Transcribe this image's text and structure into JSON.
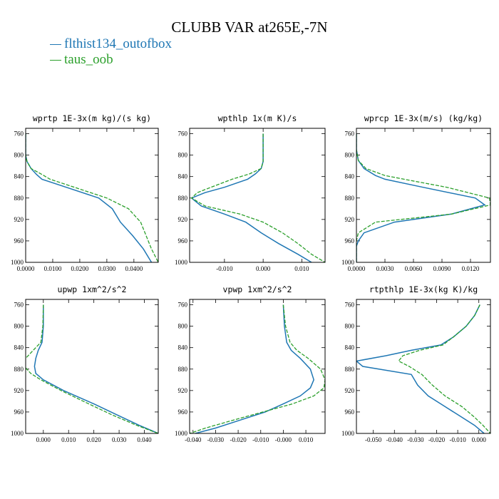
{
  "figure_title": "CLUBB VAR at265E,-7N",
  "legend": [
    {
      "label": "flthist134_outofbox",
      "color": "#1f77b4"
    },
    {
      "label": "taus_oob",
      "color": "#2ca02c"
    }
  ],
  "chart_data": [
    {
      "type": "line",
      "title": "wprtp  1E-3x(m kg)/(s kg)",
      "xlim": [
        0.0,
        0.049
      ],
      "ylim": [
        1000,
        750
      ],
      "xticks": [
        0.0,
        0.01,
        0.02,
        0.03,
        0.04
      ],
      "xtick_labels": [
        "0.0000",
        "0.0100",
        "0.0200",
        "0.0300",
        "0.0400"
      ],
      "yticks": [
        760,
        800,
        840,
        880,
        920,
        960,
        1000
      ],
      "ytick_labels": [
        "760",
        "800",
        "840",
        "880",
        "920",
        "960",
        "1000"
      ],
      "y": [
        760,
        780,
        800,
        812,
        825,
        836,
        845,
        860,
        880,
        900,
        925,
        950,
        975,
        1000
      ],
      "series": [
        {
          "name": "flthist134_outofbox",
          "x": [
            0.0,
            0.0,
            0.0,
            0.0005,
            0.002,
            0.004,
            0.006,
            0.015,
            0.027,
            0.032,
            0.035,
            0.0395,
            0.0435,
            0.0465
          ]
        },
        {
          "name": "taus_oob",
          "x": [
            0.0,
            0.0,
            0.0,
            0.0005,
            0.002,
            0.006,
            0.009,
            0.018,
            0.03,
            0.038,
            0.0425,
            0.0445,
            0.0465,
            0.049
          ]
        }
      ]
    },
    {
      "type": "line",
      "title": "wpthlp  1x(m K)/s",
      "xlim": [
        -0.019,
        0.016
      ],
      "ylim": [
        1000,
        750
      ],
      "xticks": [
        -0.01,
        0.0,
        0.01
      ],
      "xtick_labels": [
        "-0.010",
        "0.000",
        "0.010"
      ],
      "yticks": [
        760,
        800,
        840,
        880,
        920,
        960,
        1000
      ],
      "ytick_labels": [
        "760",
        "800",
        "840",
        "880",
        "920",
        "960",
        "1000"
      ],
      "y": [
        760,
        780,
        800,
        812,
        825,
        835,
        845,
        860,
        870,
        880,
        895,
        910,
        925,
        945,
        965,
        985,
        1000
      ],
      "series": [
        {
          "name": "flthist134_outofbox",
          "x": [
            0.0,
            0.0,
            0.0,
            0.0,
            -0.0005,
            -0.002,
            -0.004,
            -0.01,
            -0.015,
            -0.0185,
            -0.016,
            -0.01,
            -0.0045,
            -0.0005,
            0.004,
            0.009,
            0.0125
          ]
        },
        {
          "name": "taus_oob",
          "x": [
            0.0,
            0.0,
            0.0,
            0.0,
            -0.0005,
            -0.0035,
            -0.008,
            -0.0135,
            -0.017,
            -0.0185,
            -0.015,
            -0.006,
            0.0,
            0.005,
            0.009,
            0.0125,
            0.016
          ]
        }
      ]
    },
    {
      "type": "line",
      "title": "wprcp  1E-3x(m/s) (kg/kg)",
      "xlim": [
        0.0,
        0.0141
      ],
      "ylim": [
        1000,
        750
      ],
      "xticks": [
        0.0,
        0.003,
        0.006,
        0.009,
        0.012
      ],
      "xtick_labels": [
        "0.0000",
        "0.0030",
        "0.0060",
        "0.0090",
        "0.0120"
      ],
      "yticks": [
        760,
        800,
        840,
        880,
        920,
        960,
        1000
      ],
      "ytick_labels": [
        "760",
        "800",
        "840",
        "880",
        "920",
        "960",
        "1000"
      ],
      "y": [
        760,
        790,
        810,
        825,
        838,
        845,
        860,
        880,
        893,
        910,
        925,
        945,
        960,
        970,
        1000
      ],
      "series": [
        {
          "name": "flthist134_outofbox",
          "x": [
            0.0,
            0.0,
            0.0002,
            0.0008,
            0.002,
            0.003,
            0.007,
            0.0125,
            0.0135,
            0.01,
            0.004,
            0.0008,
            0.0002,
            0.0,
            0.0
          ]
        },
        {
          "name": "taus_oob",
          "x": [
            0.0,
            0.0,
            0.0002,
            0.001,
            0.003,
            0.005,
            0.0095,
            0.014,
            0.0141,
            0.01,
            0.002,
            0.0002,
            0.0,
            0.0,
            0.0
          ]
        }
      ]
    },
    {
      "type": "line",
      "title": "upwp  1xm^2/s^2",
      "xlim": [
        -0.007,
        0.0455
      ],
      "ylim": [
        1000,
        750
      ],
      "xticks": [
        0.0,
        0.01,
        0.02,
        0.03,
        0.04
      ],
      "xtick_labels": [
        "0.000",
        "0.010",
        "0.020",
        "0.030",
        "0.040"
      ],
      "yticks": [
        760,
        800,
        840,
        880,
        920,
        960,
        1000
      ],
      "ytick_labels": [
        "760",
        "800",
        "840",
        "880",
        "920",
        "960",
        "1000"
      ],
      "y": [
        760,
        800,
        830,
        845,
        860,
        875,
        888,
        900,
        920,
        945,
        965,
        985,
        1000
      ],
      "series": [
        {
          "name": "flthist134_outofbox",
          "x": [
            0.0,
            0.0,
            -0.0005,
            -0.002,
            -0.003,
            -0.0035,
            -0.003,
            0.0,
            0.008,
            0.02,
            0.029,
            0.038,
            0.0455
          ]
        },
        {
          "name": "taus_oob",
          "x": [
            0.0,
            -0.0002,
            -0.001,
            -0.004,
            -0.007,
            -0.0075,
            -0.005,
            -0.001,
            0.007,
            0.018,
            0.027,
            0.037,
            0.0455
          ]
        }
      ]
    },
    {
      "type": "line",
      "title": "vpwp  1xm^2/s^2",
      "xlim": [
        -0.0415,
        0.0185
      ],
      "ylim": [
        1000,
        750
      ],
      "xticks": [
        -0.04,
        -0.03,
        -0.02,
        -0.01,
        0.0,
        0.01
      ],
      "xtick_labels": [
        "-0.040",
        "-0.030",
        "-0.020",
        "-0.010",
        "-0.000",
        "0.010"
      ],
      "yticks": [
        760,
        800,
        840,
        880,
        920,
        960,
        1000
      ],
      "ytick_labels": [
        "760",
        "800",
        "840",
        "880",
        "920",
        "960",
        "1000"
      ],
      "y": [
        760,
        800,
        830,
        845,
        860,
        880,
        900,
        915,
        930,
        945,
        960,
        975,
        990,
        1000
      ],
      "series": [
        {
          "name": "flthist134_outofbox",
          "x": [
            0.0,
            0.0005,
            0.0015,
            0.0035,
            0.0075,
            0.012,
            0.0135,
            0.012,
            0.0075,
            0.0,
            -0.008,
            -0.019,
            -0.03,
            -0.039
          ]
        },
        {
          "name": "taus_oob",
          "x": [
            0.0,
            0.001,
            0.003,
            0.006,
            0.011,
            0.0165,
            0.0185,
            0.018,
            0.0135,
            0.004,
            -0.009,
            -0.022,
            -0.0345,
            -0.0415
          ]
        }
      ]
    },
    {
      "type": "line",
      "title": "rtpthlp  1E-3x(kg K)/kg",
      "xlim": [
        -0.058,
        0.0055
      ],
      "ylim": [
        1000,
        750
      ],
      "xticks": [
        -0.05,
        -0.04,
        -0.03,
        -0.02,
        -0.01,
        0.0
      ],
      "xtick_labels": [
        "-0.050",
        "-0.040",
        "-0.030",
        "-0.020",
        "-0.010",
        "0.000"
      ],
      "yticks": [
        760,
        800,
        840,
        880,
        920,
        960,
        1000
      ],
      "ytick_labels": [
        "760",
        "800",
        "840",
        "880",
        "920",
        "960",
        "1000"
      ],
      "y": [
        760,
        780,
        800,
        820,
        835,
        845,
        855,
        865,
        875,
        890,
        910,
        930,
        950,
        970,
        985,
        1000
      ],
      "series": [
        {
          "name": "flthist134_outofbox",
          "x": [
            0.0005,
            -0.002,
            -0.006,
            -0.012,
            -0.018,
            -0.032,
            -0.044,
            -0.058,
            -0.055,
            -0.032,
            -0.029,
            -0.024,
            -0.016,
            -0.008,
            -0.002,
            0.0025
          ]
        },
        {
          "name": "taus_oob",
          "x": [
            0.0005,
            -0.002,
            -0.006,
            -0.012,
            -0.017,
            -0.028,
            -0.036,
            -0.038,
            -0.033,
            -0.027,
            -0.022,
            -0.016,
            -0.008,
            -0.002,
            0.002,
            0.0055
          ]
        }
      ]
    }
  ]
}
